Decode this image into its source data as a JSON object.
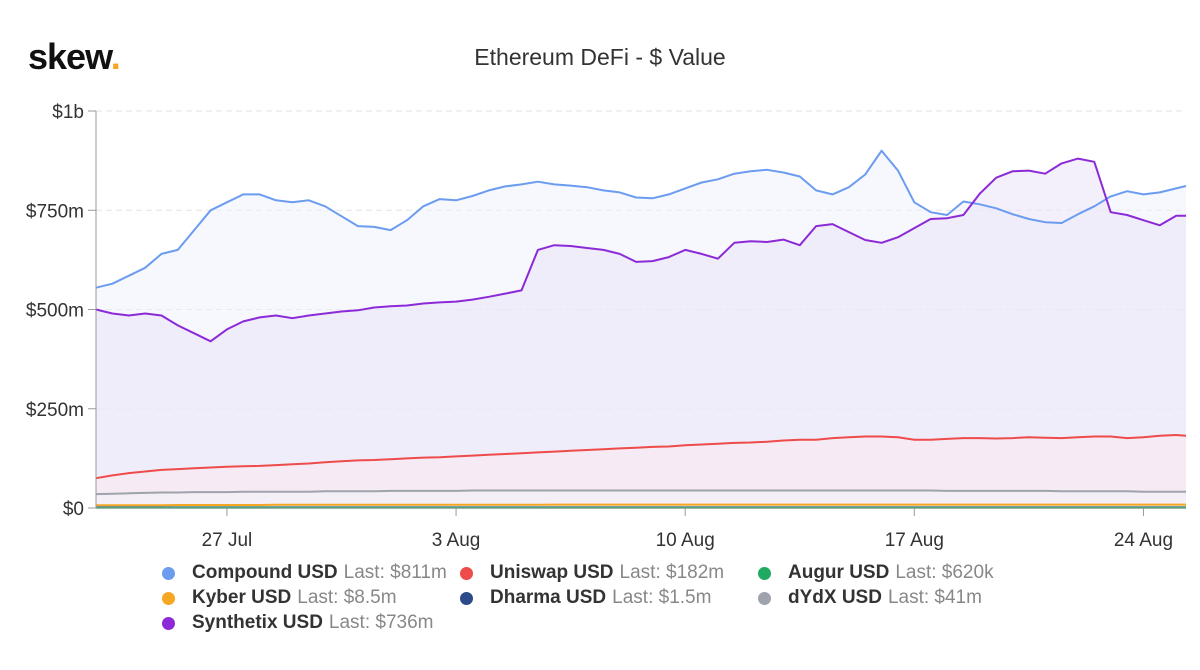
{
  "brand": {
    "name": "skew",
    "dot": "."
  },
  "chart_data": {
    "type": "area",
    "title": "Ethereum DeFi - $ Value",
    "xlabel": "",
    "ylabel": "",
    "x_ticks": [
      "27 Jul",
      "3 Aug",
      "10 Aug",
      "17 Aug",
      "24 Aug"
    ],
    "x_tick_days": [
      4,
      11,
      18,
      25,
      32
    ],
    "x_range_days": [
      0,
      33.3
    ],
    "y_ticks": [
      "$0",
      "$250m",
      "$500m",
      "$750m",
      "$1b"
    ],
    "y_tick_values": [
      0,
      250,
      500,
      750,
      1000
    ],
    "ylim": [
      0,
      1000
    ],
    "y_unit": "USD millions",
    "grid": "horizontal-dashed",
    "legend_position": "bottom",
    "x_days": [
      0,
      0.5,
      1,
      1.5,
      2,
      2.5,
      3,
      3.5,
      4,
      4.5,
      5,
      5.5,
      6,
      6.5,
      7,
      7.5,
      8,
      8.5,
      9,
      9.5,
      10,
      10.5,
      11,
      11.5,
      12,
      12.5,
      13,
      13.5,
      14,
      14.5,
      15,
      15.5,
      16,
      16.5,
      17,
      17.5,
      18,
      18.5,
      19,
      19.5,
      20,
      20.5,
      21,
      21.5,
      22,
      22.5,
      23,
      23.5,
      24,
      24.5,
      25,
      25.5,
      26,
      26.5,
      27,
      27.5,
      28,
      28.5,
      29,
      29.5,
      30,
      30.5,
      31,
      31.5,
      32,
      32.5,
      33,
      33.3
    ],
    "series": [
      {
        "name": "Compound USD",
        "last_label": "Last: $811m",
        "color": "#6b9cf0",
        "fill": "#eef3fe",
        "values": [
          555,
          565,
          585,
          605,
          640,
          650,
          700,
          750,
          770,
          790,
          790,
          775,
          770,
          775,
          760,
          735,
          710,
          708,
          700,
          725,
          760,
          778,
          775,
          786,
          800,
          810,
          815,
          822,
          815,
          812,
          808,
          800,
          795,
          782,
          780,
          790,
          805,
          820,
          828,
          842,
          848,
          852,
          845,
          835,
          800,
          790,
          808,
          840,
          900,
          850,
          770,
          745,
          738,
          772,
          765,
          755,
          740,
          728,
          720,
          718,
          740,
          760,
          785,
          798,
          790,
          795,
          805,
          811
        ]
      },
      {
        "name": "Synthetix USD",
        "last_label": "Last: $736m",
        "color": "#8b2ad6",
        "fill": "#ebe4f7",
        "values": [
          500,
          490,
          485,
          490,
          485,
          460,
          440,
          420,
          450,
          470,
          480,
          485,
          478,
          485,
          490,
          495,
          498,
          505,
          508,
          510,
          515,
          518,
          520,
          525,
          532,
          540,
          548,
          650,
          662,
          660,
          655,
          650,
          640,
          620,
          622,
          632,
          650,
          640,
          628,
          668,
          672,
          670,
          676,
          662,
          710,
          715,
          695,
          675,
          668,
          682,
          705,
          728,
          730,
          738,
          792,
          832,
          848,
          850,
          842,
          868,
          880,
          872,
          745,
          738,
          725,
          712,
          736,
          736
        ]
      },
      {
        "name": "Uniswap USD",
        "last_label": "Last: $182m",
        "color": "#ee4b4b",
        "fill": "#fbe7ef",
        "values": [
          75,
          82,
          88,
          92,
          96,
          98,
          100,
          102,
          104,
          105,
          106,
          108,
          110,
          112,
          115,
          118,
          120,
          121,
          123,
          125,
          127,
          128,
          130,
          132,
          134,
          136,
          138,
          140,
          142,
          144,
          146,
          148,
          150,
          152,
          154,
          155,
          158,
          160,
          162,
          164,
          165,
          167,
          170,
          172,
          172,
          176,
          178,
          180,
          180,
          178,
          172,
          172,
          174,
          176,
          176,
          175,
          176,
          178,
          177,
          176,
          178,
          180,
          180,
          176,
          178,
          182,
          184,
          182
        ]
      },
      {
        "name": "dYdX USD",
        "last_label": "Last: $41m",
        "color": "#9ea3ad",
        "fill": "#f3f3f7",
        "values": [
          35,
          36,
          37,
          38,
          39,
          39,
          40,
          40,
          40,
          41,
          41,
          41,
          41,
          41,
          42,
          42,
          42,
          42,
          43,
          43,
          43,
          43,
          43,
          44,
          44,
          44,
          44,
          44,
          44,
          44,
          44,
          44,
          44,
          44,
          44,
          44,
          44,
          44,
          44,
          44,
          44,
          44,
          44,
          44,
          44,
          44,
          44,
          44,
          44,
          44,
          44,
          44,
          43,
          43,
          43,
          43,
          43,
          43,
          43,
          42,
          42,
          42,
          42,
          42,
          41,
          41,
          41,
          41
        ]
      },
      {
        "name": "Kyber USD",
        "last_label": "Last: $8.5m",
        "color": "#f5a623",
        "fill": "#fdf3df",
        "values": [
          7,
          7,
          7,
          7,
          7,
          7.5,
          7.5,
          7.5,
          7.5,
          7.5,
          7.5,
          8,
          8,
          8,
          8,
          8,
          8,
          8,
          8,
          8,
          8,
          8,
          8,
          8,
          8,
          8,
          8,
          8,
          8.5,
          8.5,
          8.5,
          8.5,
          8.5,
          8.5,
          8.5,
          8.5,
          8.5,
          8.5,
          8.5,
          8.5,
          8.5,
          8.5,
          8.5,
          8.5,
          8.5,
          8.5,
          8.5,
          8.5,
          8.5,
          8.5,
          8.5,
          8.5,
          8.5,
          8.5,
          8.5,
          8.5,
          8.5,
          8.5,
          8.5,
          8.5,
          8.5,
          8.5,
          8.5,
          8.5,
          8.5,
          8.5,
          8.5,
          8.5
        ]
      },
      {
        "name": "Dharma USD",
        "last_label": "Last: $1.5m",
        "color": "#2c4a8a",
        "fill": "#e3e8f2",
        "values": [
          1.5,
          1.5,
          1.5,
          1.5,
          1.5,
          1.5,
          1.5,
          1.5,
          1.5,
          1.5,
          1.5,
          1.5,
          1.5,
          1.5,
          1.5,
          1.5,
          1.5,
          1.5,
          1.5,
          1.5,
          1.5,
          1.5,
          1.5,
          1.5,
          1.5,
          1.5,
          1.5,
          1.5,
          1.5,
          1.5,
          1.5,
          1.5,
          1.5,
          1.5,
          1.5,
          1.5,
          1.5,
          1.5,
          1.5,
          1.5,
          1.5,
          1.5,
          1.5,
          1.5,
          1.5,
          1.5,
          1.5,
          1.5,
          1.5,
          1.5,
          1.5,
          1.5,
          1.5,
          1.5,
          1.5,
          1.5,
          1.5,
          1.5,
          1.5,
          1.5,
          1.5,
          1.5,
          1.5,
          1.5,
          1.5,
          1.5,
          1.5,
          1.5
        ]
      },
      {
        "name": "Augur USD",
        "last_label": "Last: $620k",
        "color": "#1faa62",
        "fill": "#e2f3ea",
        "values": [
          0.62,
          0.62,
          0.62,
          0.62,
          0.62,
          0.62,
          0.62,
          0.62,
          0.62,
          0.62,
          0.62,
          0.62,
          0.62,
          0.62,
          0.62,
          0.62,
          0.62,
          0.62,
          0.62,
          0.62,
          0.62,
          0.62,
          0.62,
          0.62,
          0.62,
          0.62,
          0.62,
          0.62,
          0.62,
          0.62,
          0.62,
          0.62,
          0.62,
          0.62,
          0.62,
          0.62,
          0.62,
          0.62,
          0.62,
          0.62,
          0.62,
          0.62,
          0.62,
          0.62,
          0.62,
          0.62,
          0.62,
          0.62,
          0.62,
          0.62,
          0.62,
          0.62,
          0.62,
          0.62,
          0.62,
          0.62,
          0.62,
          0.62,
          0.62,
          0.62,
          0.62,
          0.62,
          0.62,
          0.62,
          0.62,
          0.62,
          0.62,
          0.62
        ]
      }
    ],
    "legend_order": [
      "Compound USD",
      "Uniswap USD",
      "Augur USD",
      "Kyber USD",
      "Dharma USD",
      "dYdX USD",
      "Synthetix USD"
    ]
  }
}
